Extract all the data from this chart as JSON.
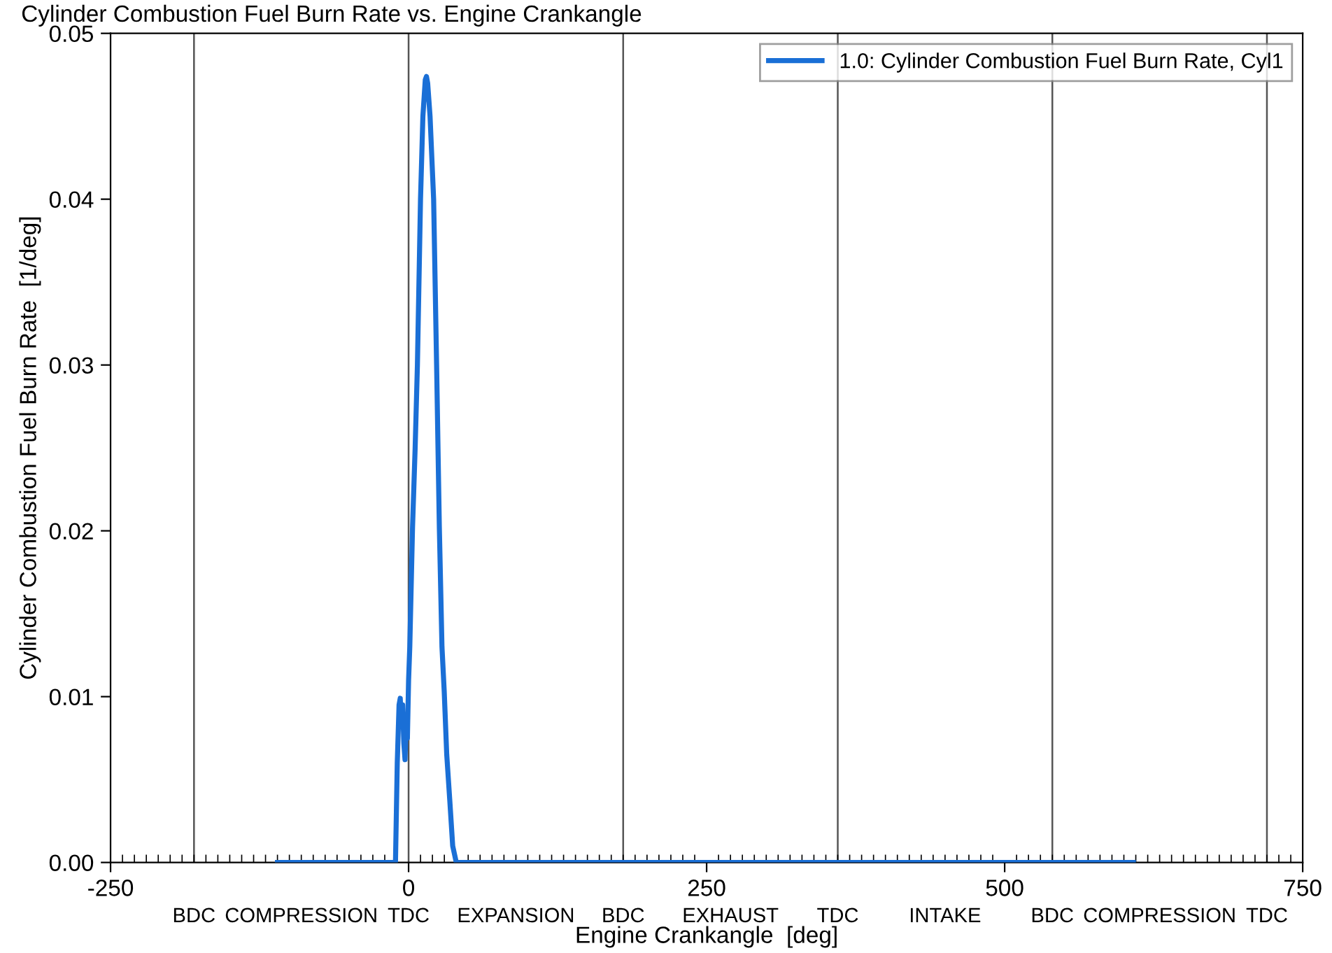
{
  "chart_data": {
    "type": "line",
    "title": "Cylinder Combustion Fuel Burn Rate vs. Engine Crankangle",
    "xlabel": "Engine Crankangle  [deg]",
    "ylabel": "Cylinder Combustion Fuel Burn Rate  [1/deg]",
    "series": [
      {
        "name": "1.0: Cylinder Combustion Fuel Burn Rate, Cyl1",
        "color": "#1a6fd6",
        "x": [
          -110,
          -11,
          -9.5,
          -8,
          -7,
          -6,
          -5,
          -4,
          -3,
          -2,
          -1,
          0,
          1,
          3.3,
          5.5,
          7.4,
          10,
          12,
          14,
          15,
          16,
          18,
          21,
          23.5,
          25.8,
          28,
          29.9,
          32,
          34.5,
          37,
          40,
          608
        ],
        "values": [
          0,
          0,
          0.006,
          0.0095,
          0.0099,
          0.0085,
          0.0095,
          0.0072,
          0.0062,
          0.0085,
          0.0075,
          0.011,
          0.013,
          0.0202,
          0.025,
          0.03,
          0.04,
          0.045,
          0.0472,
          0.0474,
          0.047,
          0.045,
          0.04,
          0.03,
          0.0202,
          0.013,
          0.0103,
          0.0065,
          0.0038,
          0.001,
          0,
          0
        ]
      }
    ],
    "xlim": [
      -250,
      750
    ],
    "ylim": [
      0,
      0.05
    ],
    "xticks": [
      -250,
      0,
      250,
      500,
      750
    ],
    "yticks": [
      {
        "value": 0,
        "label": "0.00"
      },
      0.01,
      0.02,
      0.03,
      0.04,
      0.05
    ],
    "ref_lines": [
      {
        "axis": "x",
        "value": -180,
        "label": "BDC"
      },
      {
        "axis": "x",
        "value": 0,
        "label": "TDC"
      },
      {
        "axis": "x",
        "value": 180,
        "label": "BDC"
      },
      {
        "axis": "x",
        "value": 360,
        "label": "TDC"
      },
      {
        "axis": "x",
        "value": 540,
        "label": "BDC"
      },
      {
        "axis": "x",
        "value": 720,
        "label": "TDC"
      }
    ],
    "annotations": [
      "COMPRESSION",
      "EXPANSION",
      "EXHAUST",
      "INTAKE",
      "COMPRESSION"
    ],
    "grid": false,
    "legend": "top right",
    "line_style": "solid",
    "marker": "none"
  }
}
